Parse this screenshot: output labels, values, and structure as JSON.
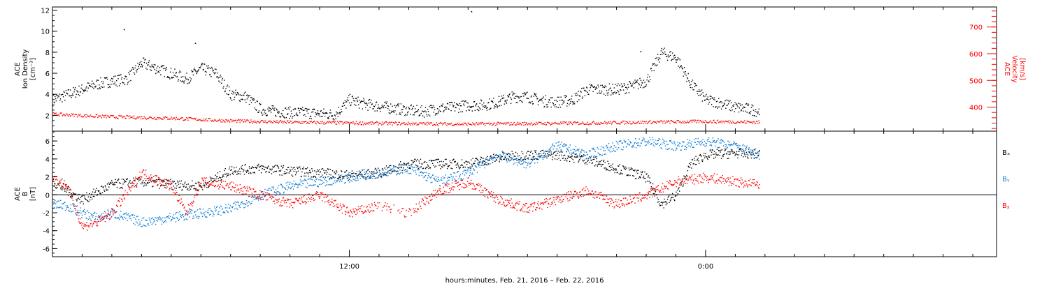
{
  "figure": {
    "xlabel": "hours:minutes, Feb. 21, 2016 – Feb. 22, 2016",
    "x_tick_labels": [
      "12:00",
      "0:00"
    ]
  },
  "chart_data": [
    {
      "type": "scatter",
      "panel": "top",
      "ylabel_lines": [
        "ACE",
        "Ion Density",
        "[cm⁻³]"
      ],
      "ylim": [
        0.5,
        12.3
      ],
      "y_ticks": [
        2,
        4,
        6,
        8,
        10,
        12
      ],
      "xlim_hours": [
        -10,
        21.8
      ],
      "x_ticks_hours": [
        0,
        12
      ],
      "data_end_hours": 13.8,
      "series": [
        {
          "axis": "left",
          "color": "#000000",
          "x": [
            -10,
            -9.5,
            -9,
            -8.5,
            -8,
            -7.5,
            -7,
            -6.5,
            -6,
            -5.5,
            -5,
            -4.5,
            -4,
            -3.5,
            -3,
            -2.5,
            -2,
            -1.5,
            -1,
            -0.5,
            0,
            0.5,
            1,
            1.5,
            2,
            2.5,
            3,
            3.5,
            4,
            4.5,
            5,
            5.5,
            6,
            6.5,
            7,
            7.5,
            8,
            8.5,
            9,
            9.5,
            10,
            10.5,
            11,
            11.5,
            12,
            12.5,
            13,
            13.5,
            13.8
          ],
          "values": [
            3.5,
            4,
            4.5,
            5,
            5.3,
            5.5,
            7,
            6.5,
            6,
            5.5,
            6.5,
            6,
            4,
            3.8,
            2.6,
            2.4,
            2.3,
            2.3,
            2.2,
            2.1,
            3.5,
            3.1,
            2.9,
            2.7,
            2.5,
            2.4,
            2.7,
            2.8,
            3,
            3,
            3.3,
            3.8,
            3.8,
            3.4,
            3.3,
            3.5,
            4.5,
            4.5,
            4.5,
            4.8,
            5.3,
            8,
            7.5,
            5,
            3.5,
            3.2,
            2.8,
            2.6,
            2.4
          ]
        },
        {
          "axis": "right",
          "color": "#ff0000",
          "x": [
            -10,
            -8,
            -6,
            -4,
            -2,
            0,
            2,
            4,
            6,
            8,
            10,
            12,
            13.8
          ],
          "values": [
            375,
            365,
            360,
            350,
            345,
            342,
            340,
            338,
            340,
            342,
            345,
            348,
            345
          ]
        }
      ],
      "right_axis": {
        "ylabel_lines": [
          "ACE",
          "Velocity",
          "[km/s]"
        ],
        "ylim": [
          310,
          775
        ],
        "y_ticks": [
          400,
          500,
          600,
          700
        ],
        "color": "#ff0000"
      },
      "outliers": [
        {
          "x": -7.6,
          "y": 10.2
        },
        {
          "x": -5.2,
          "y": 8.9
        },
        {
          "x": 4.1,
          "y": 11.9
        },
        {
          "x": 9.8,
          "y": 8.1
        }
      ]
    },
    {
      "type": "scatter",
      "panel": "bottom",
      "ylabel_lines": [
        "ACE",
        "B",
        "[nT]"
      ],
      "ylim": [
        -6.9,
        7.1
      ],
      "y_ticks": [
        -6,
        -4,
        -2,
        0,
        2,
        4,
        6
      ],
      "zero_line": true,
      "xlim_hours": [
        -10,
        21.8
      ],
      "x_ticks_hours": [
        0,
        12
      ],
      "data_end_hours": 13.8,
      "legend_position": "right",
      "series": [
        {
          "name": "Bₓ",
          "color": "#000000",
          "x": [
            -10,
            -9,
            -8,
            -7,
            -6,
            -5,
            -4,
            -3,
            -2,
            -1,
            0,
            1,
            2,
            3,
            4,
            5,
            6,
            7,
            8,
            9,
            10,
            10.5,
            11,
            11.5,
            12,
            13,
            13.8
          ],
          "values": [
            1.5,
            -0.5,
            1.2,
            1.5,
            1.2,
            1,
            2.8,
            3,
            2.7,
            2.5,
            2.2,
            2.5,
            3.5,
            3.5,
            3.5,
            4.2,
            4.5,
            4.5,
            4,
            3,
            2,
            -1,
            0,
            3.5,
            4.5,
            4.7,
            4.6
          ]
        },
        {
          "name": "Bᵧ",
          "color": "#0b7bd8",
          "x": [
            -10,
            -9.5,
            -9,
            -8.5,
            -8,
            -7,
            -6,
            -5,
            -4,
            -3,
            -2,
            -1,
            0,
            1,
            2,
            3,
            4,
            5,
            6,
            6.5,
            7,
            8,
            9,
            10,
            11,
            12,
            13,
            13.8
          ],
          "values": [
            -1,
            -1.2,
            -2,
            -2.5,
            -2,
            -3,
            -2.5,
            -2,
            -1.5,
            0,
            1,
            1.5,
            2,
            2.5,
            3,
            1.5,
            2.5,
            4.5,
            3.5,
            4.5,
            5.5,
            4.5,
            5.5,
            6,
            5.5,
            6,
            5.5,
            4.5
          ]
        },
        {
          "name": "Bᵪ",
          "color": "#ff0000",
          "x": [
            -10,
            -9.5,
            -9,
            -8.5,
            -8,
            -7,
            -6,
            -5.5,
            -5,
            -4,
            -3,
            -2,
            -1,
            0,
            1,
            2,
            3,
            4,
            5,
            6,
            7,
            8,
            9,
            10,
            11,
            12,
            13,
            13.8
          ],
          "values": [
            2,
            1,
            -3.5,
            -3,
            -2,
            2.5,
            1,
            -2,
            1.5,
            1,
            0,
            -1,
            0,
            -2,
            -1.2,
            -2,
            0.5,
            1.5,
            -0.5,
            -1.5,
            -0.5,
            0.5,
            -1,
            0,
            1.5,
            2,
            1.5,
            1.2
          ]
        }
      ]
    }
  ]
}
